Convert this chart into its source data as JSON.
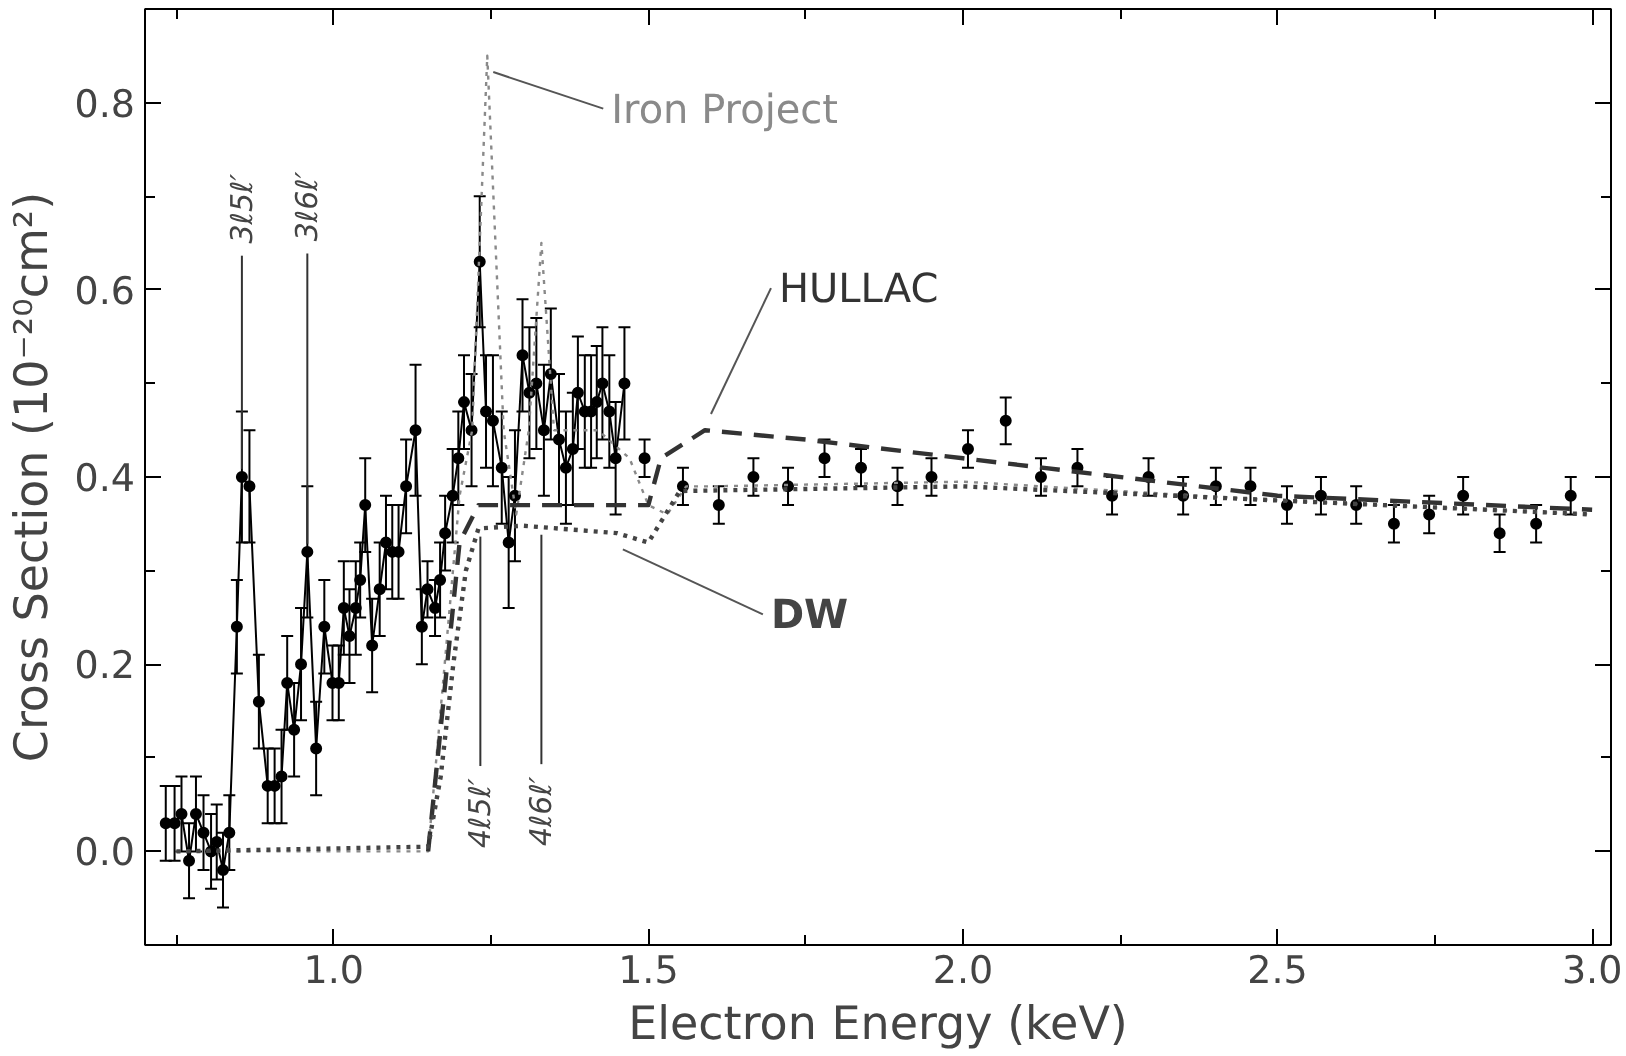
{
  "chart_data": {
    "type": "line",
    "xlabel": "Electron Energy (keV)",
    "ylabel": "Cross Section (10⁻²⁰cm²)",
    "xlim": [
      0.7,
      3.03
    ],
    "ylim": [
      -0.1,
      0.9
    ],
    "xticks": [
      {
        "value": 0.75,
        "label": null
      },
      {
        "value": 1.0,
        "label": "1.0"
      },
      {
        "value": 1.25,
        "label": null
      },
      {
        "value": 1.5,
        "label": "1.5"
      },
      {
        "value": 1.75,
        "label": null
      },
      {
        "value": 2.0,
        "label": "2.0"
      },
      {
        "value": 2.25,
        "label": null
      },
      {
        "value": 2.5,
        "label": "2.5"
      },
      {
        "value": 2.75,
        "label": null
      },
      {
        "value": 3.0,
        "label": "3.0"
      }
    ],
    "yticks": [
      {
        "value": 0.0,
        "label": "0.0"
      },
      {
        "value": 0.1,
        "label": null
      },
      {
        "value": 0.2,
        "label": "0.2"
      },
      {
        "value": 0.3,
        "label": null
      },
      {
        "value": 0.4,
        "label": "0.4"
      },
      {
        "value": 0.5,
        "label": null
      },
      {
        "value": 0.6,
        "label": "0.6"
      },
      {
        "value": 0.7,
        "label": null
      },
      {
        "value": 0.8,
        "label": "0.8"
      }
    ],
    "grid": false,
    "legend": false,
    "annotations": [
      {
        "text": "3ℓ5ℓ′",
        "x": 0.854,
        "y": 0.4
      },
      {
        "text": "3ℓ6ℓ′",
        "x": 0.958,
        "y": 0.32
      },
      {
        "text": "4ℓ5ℓ′",
        "x": 1.233,
        "y": 0.345
      },
      {
        "text": "4ℓ6ℓ′",
        "x": 1.33,
        "y": 0.347
      }
    ],
    "series": [
      {
        "color": "#000000",
        "marker": "circle",
        "line_style": "solid",
        "x": [
          0.733,
          0.747,
          0.758,
          0.77,
          0.781,
          0.793,
          0.805,
          0.814,
          0.824,
          0.834,
          0.846,
          0.854,
          0.866,
          0.881,
          0.895,
          0.906,
          0.917,
          0.926,
          0.937,
          0.948,
          0.958,
          0.972,
          0.985,
          0.998,
          1.008,
          1.016,
          1.025,
          1.035,
          1.042,
          1.05,
          1.061,
          1.073,
          1.083,
          1.093,
          1.103,
          1.115,
          1.13,
          1.14,
          1.149,
          1.161,
          1.169,
          1.177,
          1.189,
          1.198,
          1.207,
          1.219,
          1.232,
          1.242,
          1.253,
          1.267,
          1.278,
          1.288,
          1.3,
          1.311,
          1.322,
          1.334,
          1.345,
          1.358,
          1.369,
          1.38,
          1.388,
          1.399,
          1.409,
          1.418,
          1.427,
          1.438,
          1.448,
          1.462
        ],
        "values": [
          0.03,
          0.03,
          0.04,
          -0.01,
          0.04,
          0.02,
          0.0,
          0.01,
          -0.02,
          0.02,
          0.24,
          0.4,
          0.39,
          0.16,
          0.07,
          0.07,
          0.08,
          0.18,
          0.13,
          0.2,
          0.32,
          0.11,
          0.24,
          0.18,
          0.18,
          0.26,
          0.23,
          0.26,
          0.29,
          0.37,
          0.22,
          0.28,
          0.33,
          0.32,
          0.32,
          0.39,
          0.45,
          0.24,
          0.28,
          0.26,
          0.29,
          0.34,
          0.38,
          0.42,
          0.48,
          0.45,
          0.63,
          0.47,
          0.46,
          0.41,
          0.33,
          0.38,
          0.53,
          0.49,
          0.5,
          0.45,
          0.51,
          0.44,
          0.41,
          0.43,
          0.49,
          0.47,
          0.47,
          0.48,
          0.5,
          0.47,
          0.42,
          0.5
        ],
        "errors": [
          0.04,
          0.04,
          0.04,
          0.04,
          0.04,
          0.04,
          0.04,
          0.04,
          0.04,
          0.04,
          0.05,
          0.07,
          0.06,
          0.05,
          0.04,
          0.04,
          0.05,
          0.05,
          0.05,
          0.06,
          0.07,
          0.05,
          0.05,
          0.04,
          0.04,
          0.05,
          0.05,
          0.05,
          0.04,
          0.05,
          0.05,
          0.05,
          0.05,
          0.05,
          0.05,
          0.05,
          0.07,
          0.04,
          0.03,
          0.03,
          0.04,
          0.04,
          0.05,
          0.05,
          0.05,
          0.06,
          0.07,
          0.06,
          0.07,
          0.06,
          0.07,
          0.07,
          0.06,
          0.07,
          0.07,
          0.07,
          0.07,
          0.07,
          0.06,
          0.06,
          0.06,
          0.06,
          0.06,
          0.06,
          0.06,
          0.06,
          0.06,
          0.06
        ]
      },
      {
        "type": "scatter",
        "color": "#000000",
        "marker": "circle",
        "x": [
          1.494,
          1.555,
          1.612,
          1.667,
          1.722,
          1.78,
          1.838,
          1.896,
          1.95,
          2.008,
          2.068,
          2.124,
          2.182,
          2.237,
          2.295,
          2.35,
          2.402,
          2.457,
          2.515,
          2.569,
          2.625,
          2.685,
          2.741,
          2.795,
          2.853,
          2.911,
          2.966
        ],
        "values": [
          0.42,
          0.39,
          0.37,
          0.4,
          0.39,
          0.42,
          0.41,
          0.39,
          0.4,
          0.43,
          0.46,
          0.4,
          0.41,
          0.38,
          0.4,
          0.38,
          0.39,
          0.39,
          0.37,
          0.38,
          0.37,
          0.35,
          0.36,
          0.38,
          0.34,
          0.35,
          0.38
        ],
        "errors": [
          0.02,
          0.02,
          0.02,
          0.02,
          0.02,
          0.02,
          0.02,
          0.02,
          0.02,
          0.02,
          0.025,
          0.02,
          0.02,
          0.02,
          0.02,
          0.02,
          0.02,
          0.02,
          0.02,
          0.02,
          0.02,
          0.02,
          0.02,
          0.02,
          0.02,
          0.02,
          0.02
        ]
      },
      {
        "name": "Iron Project",
        "color": "#8a8a8a",
        "line_style": "dotted",
        "x": [
          0.75,
          1.15,
          1.2,
          1.22,
          1.244,
          1.27,
          1.29,
          1.31,
          1.33,
          1.35,
          1.37,
          1.42,
          1.47,
          1.5,
          1.53,
          1.56,
          1.6,
          2.0,
          2.5,
          3.0
        ],
        "values": [
          0.0,
          0.0,
          0.38,
          0.45,
          0.85,
          0.45,
          0.36,
          0.45,
          0.65,
          0.45,
          0.45,
          0.45,
          0.42,
          0.37,
          0.36,
          0.39,
          0.39,
          0.395,
          0.375,
          0.36
        ]
      },
      {
        "name": "HULLAC",
        "color": "#333333",
        "line_style": "dashed",
        "x": [
          1.15,
          1.2,
          1.23,
          1.5,
          1.52,
          1.59,
          1.75,
          2.0,
          2.5,
          3.0
        ],
        "values": [
          0.0,
          0.33,
          0.37,
          0.37,
          0.42,
          0.45,
          0.44,
          0.42,
          0.38,
          0.365
        ]
      },
      {
        "name": "DW",
        "color": "#444444",
        "line_style": "dotted",
        "x": [
          0.75,
          1.15,
          1.17,
          1.19,
          1.21,
          1.23,
          1.3,
          1.45,
          1.5,
          1.55,
          2.0,
          2.5,
          3.0
        ],
        "values": [
          0.0,
          0.005,
          0.08,
          0.2,
          0.3,
          0.345,
          0.348,
          0.34,
          0.33,
          0.385,
          0.39,
          0.375,
          0.36
        ]
      }
    ]
  }
}
